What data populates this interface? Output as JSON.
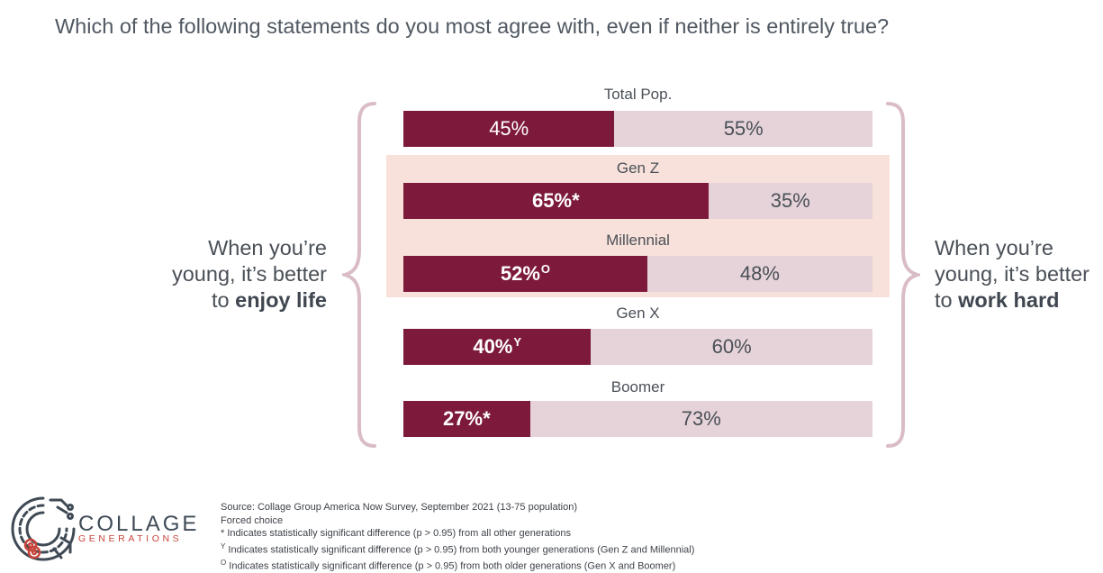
{
  "question": "Which of the following statements do you most agree with, even if neither is entirely true?",
  "left_statement": {
    "line1": "When you’re",
    "line2": "young, it’s better",
    "line3_prefix": "to ",
    "line3_bold": "enjoy life"
  },
  "right_statement": {
    "line1": "When you’re",
    "line2": "young, it’s better",
    "line3_prefix": "to ",
    "line3_bold": "work hard"
  },
  "colors": {
    "enjoy_life": "#7d1a3c",
    "work_hard": "#e6d3d9",
    "highlight": "#f8e1da",
    "brace": "#d9bcc6"
  },
  "chart_data": {
    "type": "bar",
    "orientation": "horizontal-stacked-100",
    "categories": [
      "Total Pop.",
      "Gen Z",
      "Millennial",
      "Gen X",
      "Boomer"
    ],
    "series": [
      {
        "name": "When you’re young, it’s better to enjoy life",
        "values": [
          45,
          65,
          52,
          40,
          27
        ]
      },
      {
        "name": "When you’re young, it’s better to work hard",
        "values": [
          55,
          35,
          48,
          60,
          73
        ]
      }
    ],
    "left_labels": [
      {
        "text": "45%",
        "mark": ""
      },
      {
        "text": "65%",
        "mark": "*"
      },
      {
        "text": "52%",
        "mark": "O"
      },
      {
        "text": "40%",
        "mark": "Y"
      },
      {
        "text": "27%",
        "mark": "*"
      }
    ],
    "right_labels": [
      "55%",
      "35%",
      "48%",
      "60%",
      "73%"
    ],
    "highlighted_categories": [
      "Gen Z",
      "Millennial"
    ]
  },
  "logo": {
    "word": "COLLAGE",
    "sub": "GENERATIONS"
  },
  "footnotes": {
    "source": "Source: Collage Group America Now Survey, September 2021 (13-75 population)",
    "question_type": "Forced choice",
    "note_star": "* Indicates statistically significant difference (p > 0.95) from all other generations",
    "note_y_mark": "Y",
    "note_y_text": " Indicates statistically significant difference (p > 0.95) from both younger generations (Gen Z and Millennial)",
    "note_o_mark": "O",
    "note_o_text": " Indicates statistically significant difference (p > 0.95) from both older generations (Gen X and Boomer)"
  }
}
